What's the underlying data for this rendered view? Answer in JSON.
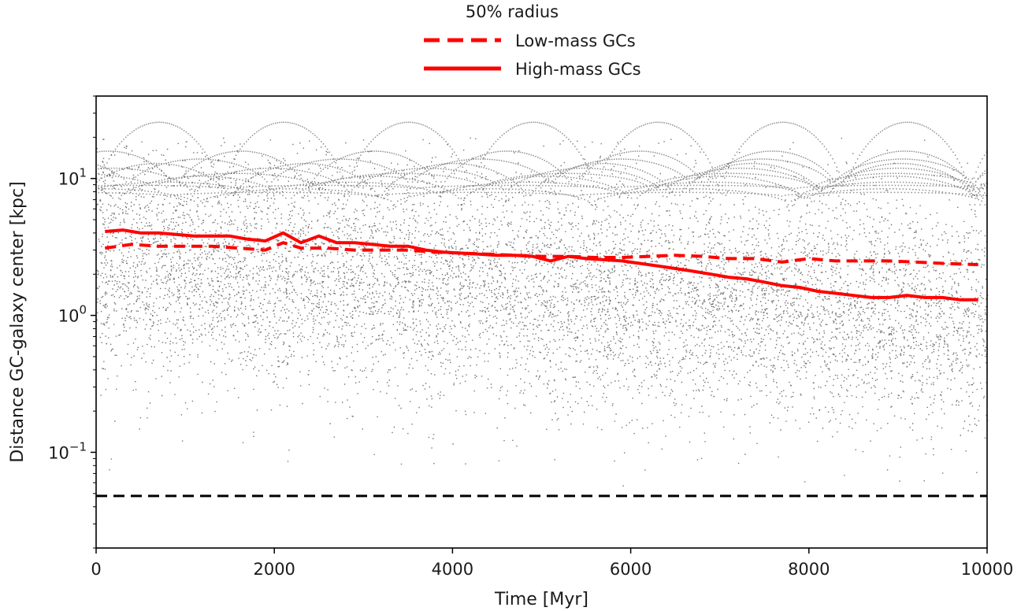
{
  "chart_data": {
    "type": "scatter",
    "title": "",
    "xlabel": "Time [Myr]",
    "ylabel": "Distance GC-galaxy center [kpc]",
    "xlim": [
      0,
      10000
    ],
    "ylim": [
      0.02,
      40
    ],
    "yscale": "log",
    "grid": false,
    "x_ticks": [
      0,
      2000,
      4000,
      6000,
      8000,
      10000
    ],
    "x_tick_labels": [
      "0",
      "2000",
      "4000",
      "6000",
      "8000",
      "10000"
    ],
    "y_ticks": [
      {
        "value": 0.1,
        "base": "10",
        "exp": "−1"
      },
      {
        "value": 1,
        "base": "10",
        "exp": "0"
      },
      {
        "value": 10,
        "base": "10",
        "exp": "1"
      }
    ],
    "legend": {
      "title": "50% radius",
      "placement": "above-plot",
      "entries": [
        {
          "label": "Low-mass GCs",
          "style": "dashed",
          "color": "#ff0000"
        },
        {
          "label": "High-mass GCs",
          "style": "solid",
          "color": "#ff0000"
        }
      ]
    },
    "series": [
      {
        "name": "Low-mass GCs",
        "style": "dashed",
        "color": "#ff0000",
        "x": [
          100,
          400,
          700,
          1000,
          1300,
          1600,
          1900,
          2100,
          2300,
          2600,
          2900,
          3200,
          3500,
          3800,
          4100,
          4400,
          4700,
          5000,
          5300,
          5600,
          5900,
          6200,
          6500,
          6800,
          7100,
          7400,
          7700,
          8000,
          8300,
          8600,
          8900,
          9200,
          9500,
          9900
        ],
        "y": [
          3.1,
          3.3,
          3.2,
          3.2,
          3.2,
          3.1,
          3.0,
          3.4,
          3.1,
          3.1,
          3.0,
          3.0,
          3.0,
          2.9,
          2.85,
          2.8,
          2.75,
          2.7,
          2.7,
          2.65,
          2.65,
          2.7,
          2.75,
          2.7,
          2.6,
          2.6,
          2.45,
          2.6,
          2.5,
          2.5,
          2.5,
          2.45,
          2.4,
          2.35
        ]
      },
      {
        "name": "High-mass GCs",
        "style": "solid",
        "color": "#ff0000",
        "x": [
          100,
          300,
          500,
          700,
          900,
          1100,
          1300,
          1500,
          1700,
          1900,
          2100,
          2300,
          2500,
          2700,
          2900,
          3100,
          3300,
          3500,
          3700,
          3900,
          4100,
          4300,
          4500,
          4700,
          4900,
          5100,
          5300,
          5500,
          5700,
          5900,
          6100,
          6300,
          6500,
          6700,
          6900,
          7100,
          7300,
          7500,
          7700,
          7900,
          8100,
          8300,
          8500,
          8700,
          8900,
          9100,
          9300,
          9500,
          9700,
          9900
        ],
        "y": [
          4.1,
          4.2,
          4.0,
          4.0,
          3.9,
          3.8,
          3.8,
          3.8,
          3.6,
          3.5,
          4.0,
          3.4,
          3.8,
          3.4,
          3.4,
          3.3,
          3.2,
          3.2,
          3.0,
          2.9,
          2.85,
          2.8,
          2.75,
          2.75,
          2.7,
          2.5,
          2.7,
          2.6,
          2.55,
          2.5,
          2.4,
          2.3,
          2.2,
          2.1,
          2.0,
          1.9,
          1.85,
          1.75,
          1.65,
          1.6,
          1.5,
          1.45,
          1.4,
          1.35,
          1.35,
          1.4,
          1.35,
          1.35,
          1.3,
          1.3
        ]
      },
      {
        "name": "",
        "style": "dashed",
        "color": "#000000",
        "x": [
          0,
          10000
        ],
        "y": [
          0.048,
          0.048
        ]
      }
    ],
    "scatter_cloud": {
      "name": "",
      "color": "#000000",
      "description_values": {
        "median_curve": [
          [
            0,
            2.5
          ],
          [
            5000,
            1.6
          ],
          [
            10000,
            1.0
          ]
        ],
        "orbit_arc_peak_kpc": 26,
        "orbit_arc_period_myr": 1700
      }
    }
  }
}
